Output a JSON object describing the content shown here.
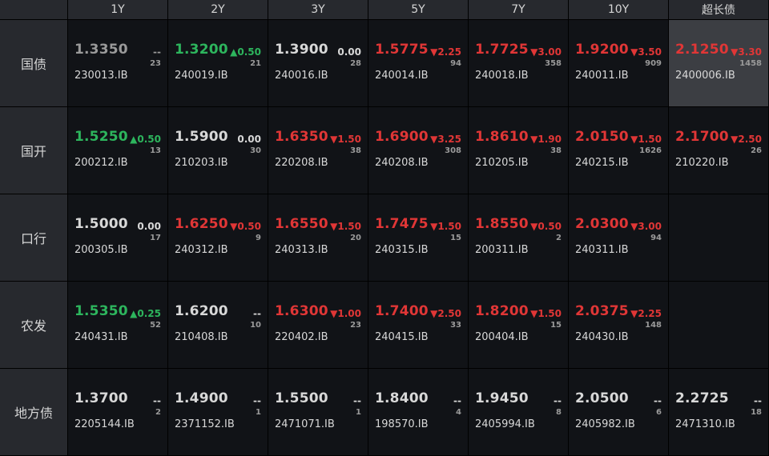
{
  "columns": [
    "1Y",
    "2Y",
    "3Y",
    "5Y",
    "7Y",
    "10Y",
    "超长债"
  ],
  "colors": {
    "up": "#e03636",
    "down": "#2db55d",
    "flat": "#d8d8d8",
    "none": "#9a9a9a",
    "highlight_bg": "#3c3e43"
  },
  "rows": [
    {
      "label": "国债",
      "cells": [
        {
          "yield": "1.3350",
          "change": "--",
          "volume": "23",
          "code": "230013.IB",
          "dir": "none"
        },
        {
          "yield": "1.3200",
          "change": "▲0.50",
          "volume": "21",
          "code": "240019.IB",
          "dir": "down"
        },
        {
          "yield": "1.3900",
          "change": "0.00",
          "volume": "28",
          "code": "240016.IB",
          "dir": "flat"
        },
        {
          "yield": "1.5775",
          "change": "▼2.25",
          "volume": "94",
          "code": "240014.IB",
          "dir": "up"
        },
        {
          "yield": "1.7725",
          "change": "▼3.00",
          "volume": "358",
          "code": "240018.IB",
          "dir": "up"
        },
        {
          "yield": "1.9200",
          "change": "▼3.50",
          "volume": "909",
          "code": "240011.IB",
          "dir": "up"
        },
        {
          "yield": "2.1250",
          "change": "▼3.30",
          "volume": "1458",
          "code": "2400006.IB",
          "dir": "up",
          "selected": true
        }
      ]
    },
    {
      "label": "国开",
      "cells": [
        {
          "yield": "1.5250",
          "change": "▲0.50",
          "volume": "13",
          "code": "200212.IB",
          "dir": "down"
        },
        {
          "yield": "1.5900",
          "change": "0.00",
          "volume": "30",
          "code": "210203.IB",
          "dir": "flat"
        },
        {
          "yield": "1.6350",
          "change": "▼1.50",
          "volume": "38",
          "code": "220208.IB",
          "dir": "up"
        },
        {
          "yield": "1.6900",
          "change": "▼3.25",
          "volume": "308",
          "code": "240208.IB",
          "dir": "up"
        },
        {
          "yield": "1.8610",
          "change": "▼1.90",
          "volume": "38",
          "code": "210205.IB",
          "dir": "up"
        },
        {
          "yield": "2.0150",
          "change": "▼1.50",
          "volume": "1626",
          "code": "240215.IB",
          "dir": "up"
        },
        {
          "yield": "2.1700",
          "change": "▼2.50",
          "volume": "26",
          "code": "210220.IB",
          "dir": "up"
        }
      ]
    },
    {
      "label": "口行",
      "cells": [
        {
          "yield": "1.5000",
          "change": "0.00",
          "volume": "17",
          "code": "200305.IB",
          "dir": "flat"
        },
        {
          "yield": "1.6250",
          "change": "▼0.50",
          "volume": "9",
          "code": "240312.IB",
          "dir": "up"
        },
        {
          "yield": "1.6550",
          "change": "▼1.50",
          "volume": "20",
          "code": "240313.IB",
          "dir": "up"
        },
        {
          "yield": "1.7475",
          "change": "▼1.50",
          "volume": "15",
          "code": "240315.IB",
          "dir": "up"
        },
        {
          "yield": "1.8550",
          "change": "▼0.50",
          "volume": "2",
          "code": "200311.IB",
          "dir": "up"
        },
        {
          "yield": "2.0300",
          "change": "▼3.00",
          "volume": "94",
          "code": "240311.IB",
          "dir": "up"
        },
        null
      ]
    },
    {
      "label": "农发",
      "cells": [
        {
          "yield": "1.5350",
          "change": "▲0.25",
          "volume": "52",
          "code": "240431.IB",
          "dir": "down"
        },
        {
          "yield": "1.6200",
          "change": "--",
          "volume": "10",
          "code": "210408.IB",
          "dir": "flat"
        },
        {
          "yield": "1.6300",
          "change": "▼1.00",
          "volume": "23",
          "code": "220402.IB",
          "dir": "up"
        },
        {
          "yield": "1.7400",
          "change": "▼2.50",
          "volume": "33",
          "code": "240415.IB",
          "dir": "up"
        },
        {
          "yield": "1.8200",
          "change": "▼1.50",
          "volume": "15",
          "code": "200404.IB",
          "dir": "up"
        },
        {
          "yield": "2.0375",
          "change": "▼2.25",
          "volume": "148",
          "code": "240430.IB",
          "dir": "up"
        },
        null
      ]
    },
    {
      "label": "地方债",
      "cells": [
        {
          "yield": "1.3700",
          "change": "--",
          "volume": "2",
          "code": "2205144.IB",
          "dir": "flat"
        },
        {
          "yield": "1.4900",
          "change": "--",
          "volume": "1",
          "code": "2371152.IB",
          "dir": "flat"
        },
        {
          "yield": "1.5500",
          "change": "--",
          "volume": "1",
          "code": "2471071.IB",
          "dir": "flat"
        },
        {
          "yield": "1.8400",
          "change": "--",
          "volume": "4",
          "code": "198570.IB",
          "dir": "flat"
        },
        {
          "yield": "1.9450",
          "change": "--",
          "volume": "8",
          "code": "2405994.IB",
          "dir": "flat"
        },
        {
          "yield": "2.0500",
          "change": "--",
          "volume": "6",
          "code": "2405982.IB",
          "dir": "flat"
        },
        {
          "yield": "2.2725",
          "change": "--",
          "volume": "18",
          "code": "2471310.IB",
          "dir": "flat"
        }
      ]
    }
  ]
}
